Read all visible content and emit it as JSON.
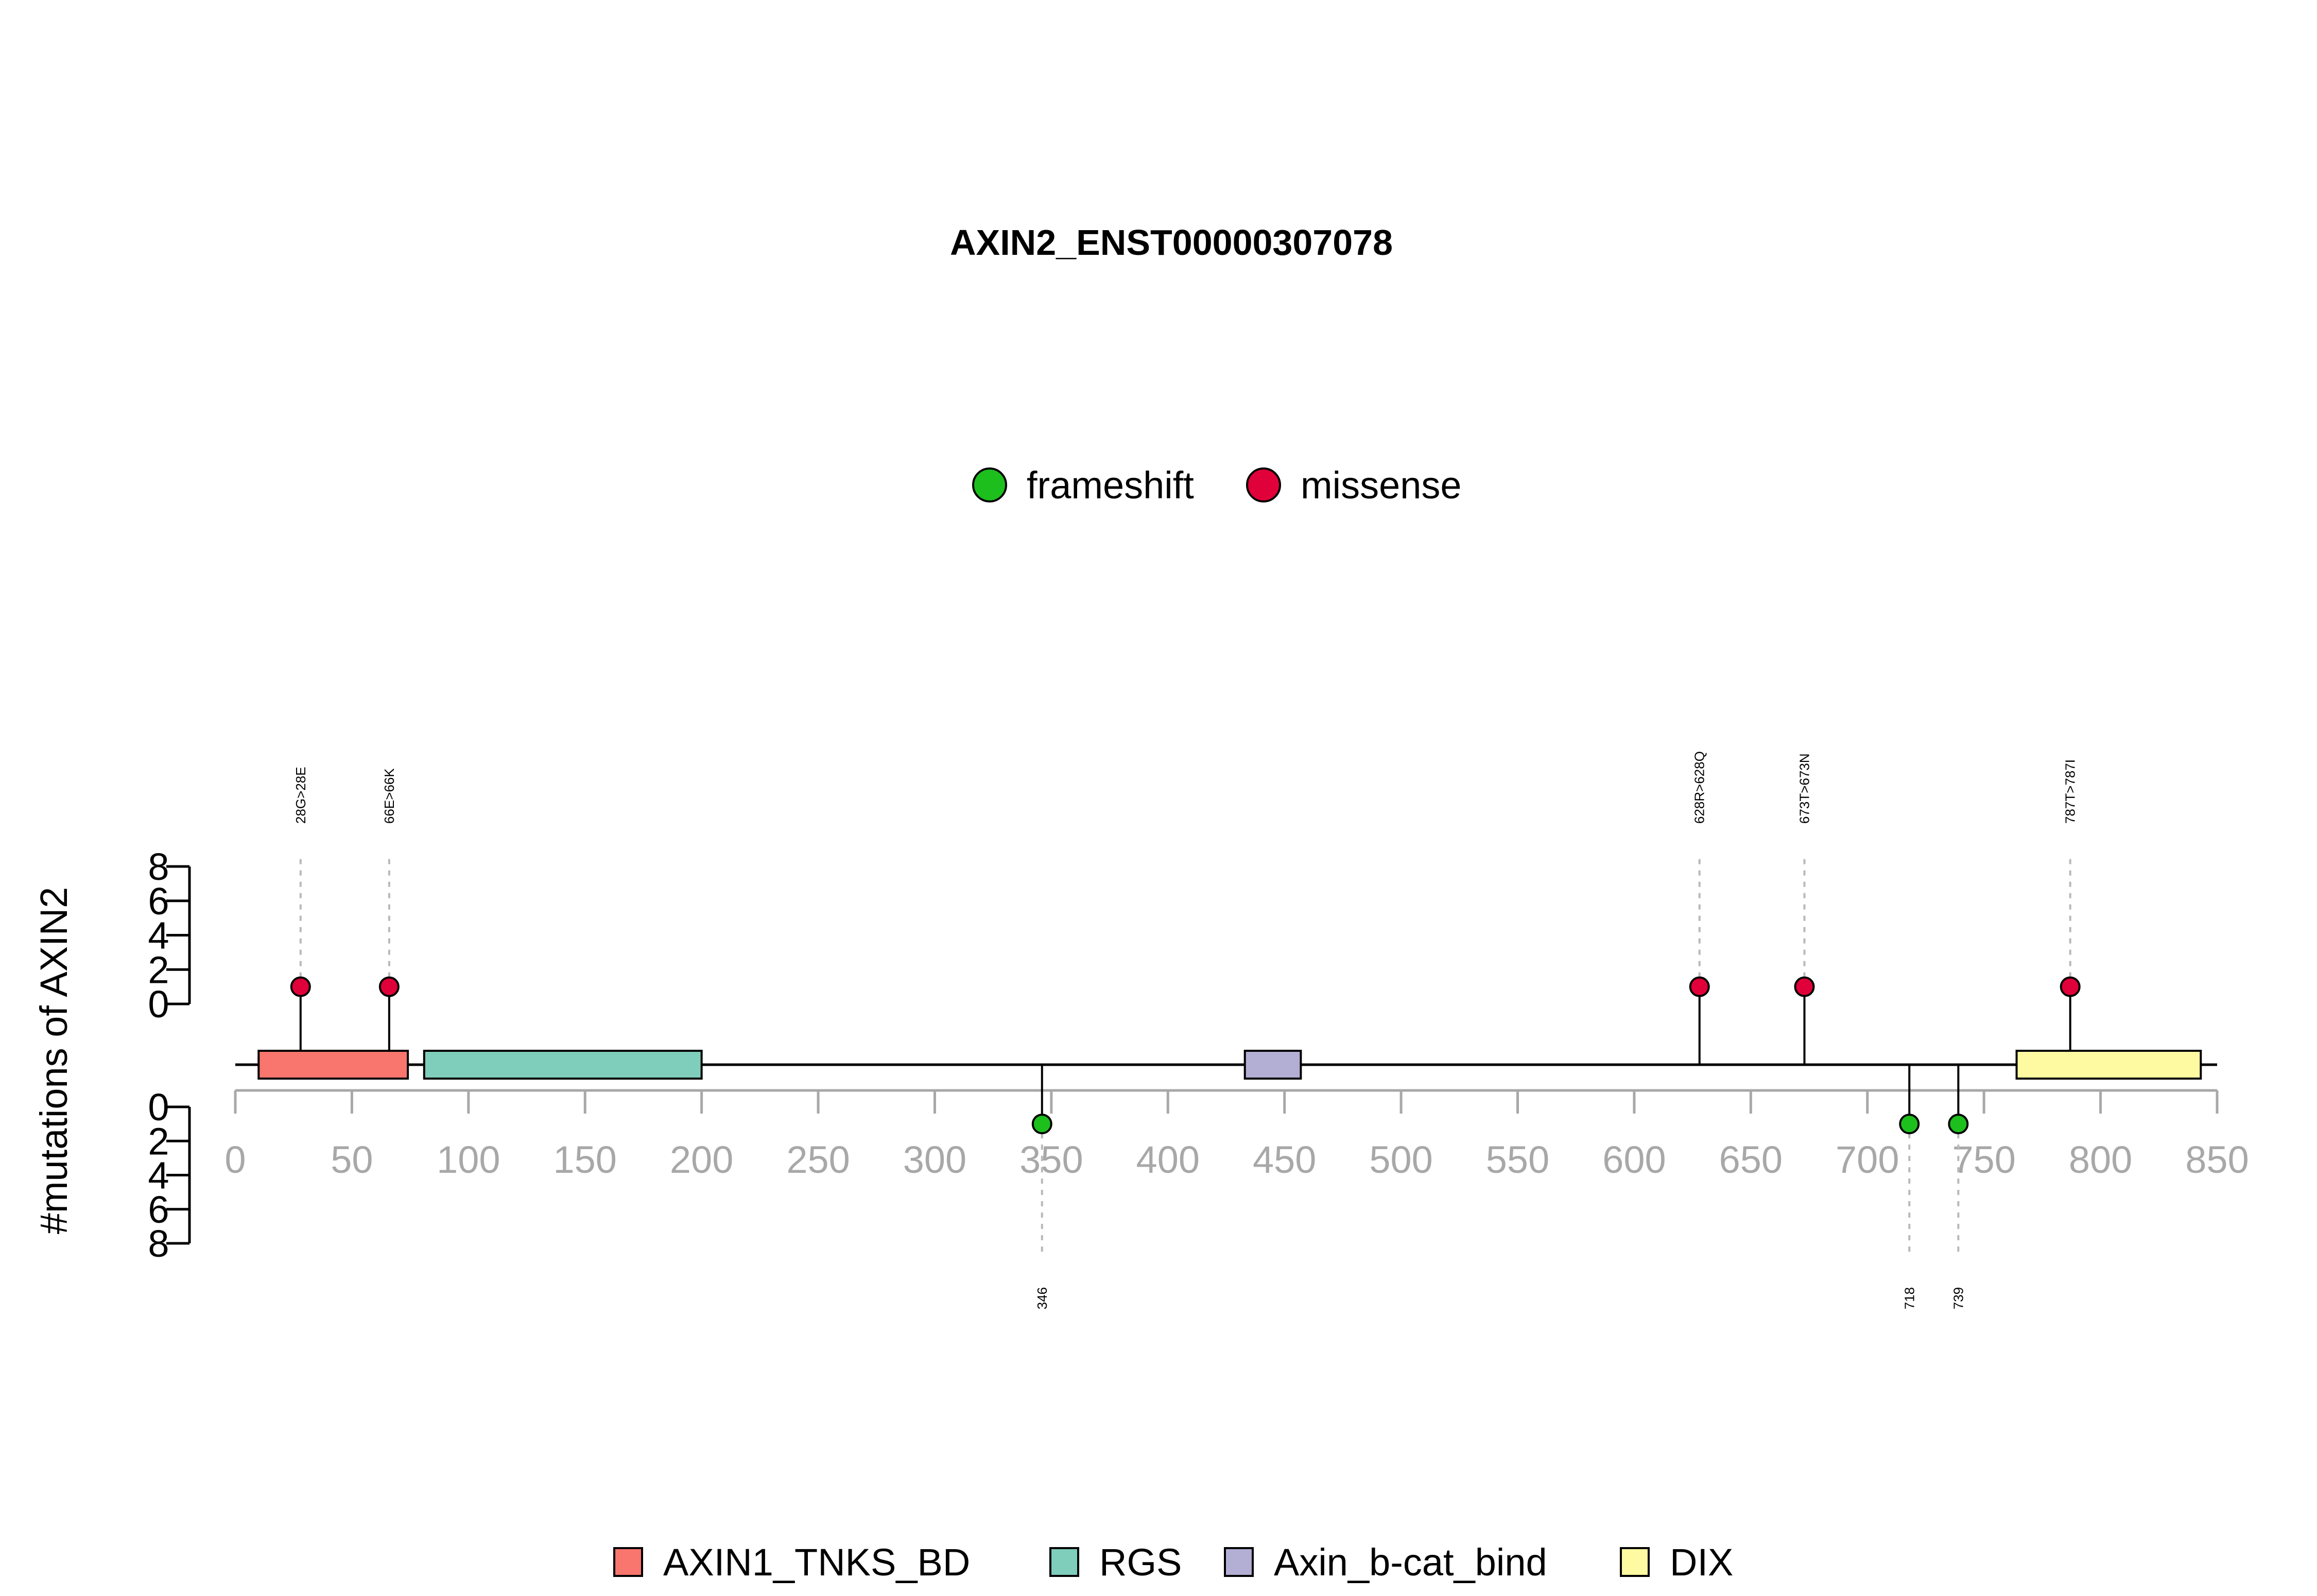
{
  "chart_data": {
    "type": "lollipop",
    "title": "AXIN2_ENST00000307078",
    "ylabel": "#mutations of AXIN2",
    "xlim": [
      0,
      850
    ],
    "x_ticks": [
      0,
      50,
      100,
      150,
      200,
      250,
      300,
      350,
      400,
      450,
      500,
      550,
      600,
      650,
      700,
      750,
      800,
      850
    ],
    "y_ticks_upper": [
      0,
      2,
      4,
      6,
      8
    ],
    "y_ticks_lower": [
      0,
      2,
      4,
      6,
      8
    ],
    "ylim": [
      0,
      8
    ],
    "mutation_legend": [
      {
        "name": "frameshift",
        "color": "#1dbf1d"
      },
      {
        "name": "missense",
        "color": "#e0003a"
      }
    ],
    "domains": [
      {
        "name": "AXIN1_TNKS_BD",
        "start": 10,
        "end": 74,
        "color": "#f8766d"
      },
      {
        "name": "RGS",
        "start": 81,
        "end": 200,
        "color": "#7fcdbb"
      },
      {
        "name": "Axin_b-cat_bind",
        "start": 433,
        "end": 457,
        "color": "#b3aed4"
      },
      {
        "name": "DIX",
        "start": 764,
        "end": 843,
        "color": "#fdfaa2"
      }
    ],
    "mutations_upper": [
      {
        "position": 28,
        "label": "28G>28E",
        "type": "missense",
        "count": 1
      },
      {
        "position": 66,
        "label": "66E>66K",
        "type": "missense",
        "count": 1
      },
      {
        "position": 628,
        "label": "628R>628Q",
        "type": "missense",
        "count": 1
      },
      {
        "position": 673,
        "label": "673T>673N",
        "type": "missense",
        "count": 1
      },
      {
        "position": 787,
        "label": "787T>787I",
        "type": "missense",
        "count": 1
      }
    ],
    "mutations_lower": [
      {
        "position": 346,
        "label": "346",
        "type": "frameshift",
        "count": 1
      },
      {
        "position": 718,
        "label": "718",
        "type": "frameshift",
        "count": 1
      },
      {
        "position": 739,
        "label": "739",
        "type": "frameshift",
        "count": 1
      }
    ]
  }
}
